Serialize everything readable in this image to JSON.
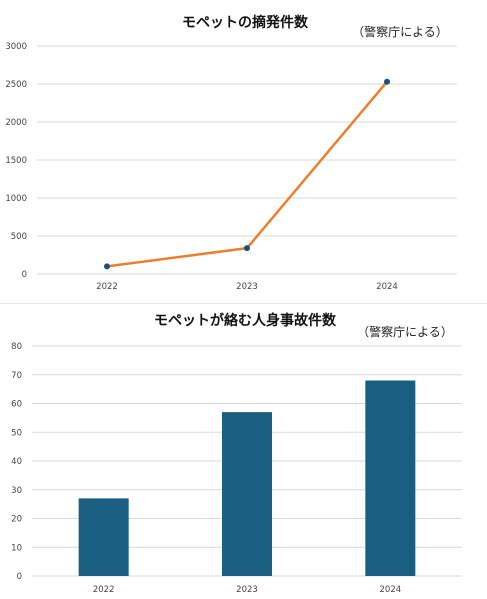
{
  "chart_data": [
    {
      "type": "line",
      "title": "モペットの摘発件数",
      "source_note": "（警察庁による）",
      "categories": [
        "2022",
        "2023",
        "2024"
      ],
      "series": [
        {
          "values": [
            100,
            340,
            2530
          ]
        }
      ],
      "ylim": [
        0,
        3000
      ],
      "yticks": [
        "0",
        "500",
        "1000",
        "1500",
        "2000",
        "2500",
        "3000"
      ],
      "grid": true,
      "colors": {
        "line": "#ED7D31",
        "marker": "#1F4E79"
      }
    },
    {
      "type": "bar",
      "title": "モペットが絡む人身事故件数",
      "source_note": "（警察庁による）",
      "categories": [
        "2022",
        "2023",
        "2024"
      ],
      "series": [
        {
          "values": [
            27,
            57,
            68
          ]
        }
      ],
      "ylim": [
        0,
        80
      ],
      "yticks": [
        "0",
        "10",
        "20",
        "30",
        "40",
        "50",
        "60",
        "70",
        "80"
      ],
      "grid": true,
      "colors": {
        "bar": "#1A5E80"
      }
    }
  ]
}
